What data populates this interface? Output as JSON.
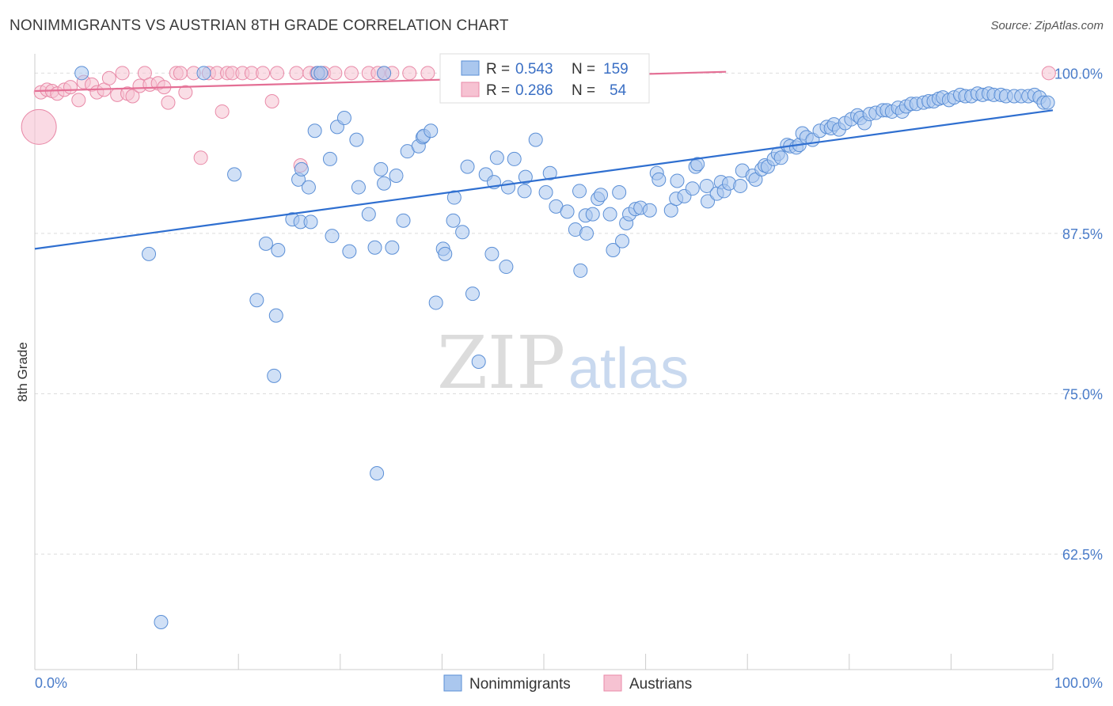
{
  "title": "NONIMMIGRANTS VS AUSTRIAN 8TH GRADE CORRELATION CHART",
  "source": "Source: ZipAtlas.com",
  "watermark": {
    "zip": "ZIP",
    "atlas": "atlas"
  },
  "legend_box": {
    "rows": [
      {
        "r_label": "R =",
        "r_value": "0.543",
        "n_label": "N =",
        "n_value": "159"
      },
      {
        "r_label": "R =",
        "r_value": "0.286",
        "n_label": "N =",
        "n_value": "54"
      }
    ]
  },
  "colors": {
    "blue_fill": "#aac7ee",
    "blue_stroke": "#5b8fd6",
    "blue_line": "#2f6fd0",
    "pink_fill": "#f6c2d2",
    "pink_stroke": "#e98aa8",
    "pink_line": "#e46f95",
    "grid": "#dddddd",
    "tick_text": "#4a7cc9"
  },
  "chart_data": {
    "type": "scatter",
    "title": "NONIMMIGRANTS VS AUSTRIAN 8TH GRADE CORRELATION CHART",
    "xlabel": "",
    "ylabel": "8th Grade",
    "xlim": [
      0,
      100
    ],
    "ylim": [
      53.5,
      101.5
    ],
    "x_tick_labels": [
      "0.0%",
      "100.0%"
    ],
    "y_ticks": [
      100.0,
      87.5,
      75.0,
      62.5
    ],
    "y_tick_labels": [
      "100.0%",
      "87.5%",
      "75.0%",
      "62.5%"
    ],
    "grid": true,
    "legend_position": "bottom-center",
    "series": [
      {
        "name": "Nonimmigrants",
        "R": 0.543,
        "N": 159,
        "trend": {
          "x": [
            0,
            100
          ],
          "y": [
            86.3,
            97.1
          ]
        },
        "points": [
          [
            4.6,
            100
          ],
          [
            16.6,
            100
          ],
          [
            27.8,
            100
          ],
          [
            28.1,
            100
          ],
          [
            34.3,
            100
          ],
          [
            11.2,
            85.9
          ],
          [
            19.6,
            92.1
          ],
          [
            21.8,
            82.3
          ],
          [
            22.7,
            86.7
          ],
          [
            23.5,
            76.4
          ],
          [
            23.7,
            81.1
          ],
          [
            23.9,
            86.2
          ],
          [
            25.3,
            88.6
          ],
          [
            25.9,
            91.7
          ],
          [
            26.1,
            88.4
          ],
          [
            26.2,
            92.5
          ],
          [
            26.9,
            91.1
          ],
          [
            27.1,
            88.4
          ],
          [
            27.5,
            95.5
          ],
          [
            29.0,
            93.3
          ],
          [
            29.2,
            87.3
          ],
          [
            29.7,
            95.8
          ],
          [
            30.4,
            96.5
          ],
          [
            30.9,
            86.1
          ],
          [
            31.6,
            94.8
          ],
          [
            31.8,
            91.1
          ],
          [
            32.8,
            89.0
          ],
          [
            33.4,
            86.4
          ],
          [
            33.6,
            68.8
          ],
          [
            34.0,
            92.5
          ],
          [
            34.3,
            91.4
          ],
          [
            35.1,
            86.4
          ],
          [
            35.5,
            92.0
          ],
          [
            36.2,
            88.5
          ],
          [
            36.6,
            93.9
          ],
          [
            37.7,
            94.3
          ],
          [
            38.1,
            95.0
          ],
          [
            38.2,
            95.1
          ],
          [
            38.9,
            95.5
          ],
          [
            39.4,
            82.1
          ],
          [
            40.1,
            86.3
          ],
          [
            40.3,
            85.9
          ],
          [
            41.1,
            88.5
          ],
          [
            41.2,
            90.3
          ],
          [
            42.0,
            87.6
          ],
          [
            42.5,
            92.7
          ],
          [
            43.0,
            82.8
          ],
          [
            43.6,
            77.5
          ],
          [
            44.3,
            92.1
          ],
          [
            44.9,
            85.9
          ],
          [
            45.1,
            91.5
          ],
          [
            45.4,
            93.4
          ],
          [
            46.3,
            84.9
          ],
          [
            46.5,
            91.1
          ],
          [
            47.1,
            93.3
          ],
          [
            48.1,
            90.8
          ],
          [
            48.2,
            91.9
          ],
          [
            49.2,
            94.8
          ],
          [
            50.2,
            90.7
          ],
          [
            50.6,
            92.2
          ],
          [
            51.2,
            89.6
          ],
          [
            52.3,
            89.2
          ],
          [
            53.1,
            87.8
          ],
          [
            53.5,
            90.8
          ],
          [
            53.6,
            84.6
          ],
          [
            54.1,
            88.9
          ],
          [
            54.2,
            87.5
          ],
          [
            54.8,
            89.0
          ],
          [
            55.3,
            90.2
          ],
          [
            55.6,
            90.5
          ],
          [
            56.5,
            89.0
          ],
          [
            56.8,
            86.2
          ],
          [
            57.4,
            90.7
          ],
          [
            57.7,
            86.9
          ],
          [
            58.1,
            88.3
          ],
          [
            58.4,
            89.0
          ],
          [
            59.0,
            89.4
          ],
          [
            59.5,
            89.5
          ],
          [
            60.4,
            89.3
          ],
          [
            61.1,
            92.2
          ],
          [
            61.3,
            91.7
          ],
          [
            62.5,
            89.3
          ],
          [
            63.0,
            90.2
          ],
          [
            63.1,
            91.6
          ],
          [
            63.8,
            90.4
          ],
          [
            64.6,
            91.0
          ],
          [
            64.9,
            92.7
          ],
          [
            65.1,
            92.9
          ],
          [
            66.0,
            91.2
          ],
          [
            66.1,
            90.0
          ],
          [
            67.0,
            90.6
          ],
          [
            67.4,
            91.5
          ],
          [
            67.7,
            90.8
          ],
          [
            68.2,
            91.4
          ],
          [
            69.3,
            91.2
          ],
          [
            69.5,
            92.4
          ],
          [
            70.5,
            92.0
          ],
          [
            70.8,
            91.7
          ],
          [
            71.4,
            92.5
          ],
          [
            71.7,
            92.8
          ],
          [
            72.0,
            92.7
          ],
          [
            72.6,
            93.3
          ],
          [
            73.0,
            93.7
          ],
          [
            73.3,
            93.4
          ],
          [
            73.9,
            94.4
          ],
          [
            74.2,
            94.3
          ],
          [
            74.8,
            94.2
          ],
          [
            75.1,
            94.4
          ],
          [
            75.4,
            95.3
          ],
          [
            75.8,
            95.0
          ],
          [
            76.4,
            94.8
          ],
          [
            77.1,
            95.5
          ],
          [
            77.8,
            95.8
          ],
          [
            78.2,
            95.7
          ],
          [
            78.5,
            96.0
          ],
          [
            79.0,
            95.6
          ],
          [
            79.6,
            96.1
          ],
          [
            80.2,
            96.4
          ],
          [
            80.8,
            96.7
          ],
          [
            81.1,
            96.5
          ],
          [
            81.5,
            96.1
          ],
          [
            82.0,
            96.8
          ],
          [
            82.6,
            96.9
          ],
          [
            83.3,
            97.1
          ],
          [
            83.7,
            97.1
          ],
          [
            84.2,
            97.0
          ],
          [
            84.8,
            97.3
          ],
          [
            85.2,
            97.0
          ],
          [
            85.6,
            97.4
          ],
          [
            86.1,
            97.6
          ],
          [
            86.6,
            97.6
          ],
          [
            87.3,
            97.7
          ],
          [
            87.8,
            97.8
          ],
          [
            88.3,
            97.8
          ],
          [
            88.8,
            98.0
          ],
          [
            89.2,
            98.1
          ],
          [
            89.8,
            97.9
          ],
          [
            90.3,
            98.1
          ],
          [
            90.9,
            98.3
          ],
          [
            91.4,
            98.2
          ],
          [
            92.0,
            98.2
          ],
          [
            92.6,
            98.4
          ],
          [
            93.1,
            98.3
          ],
          [
            93.7,
            98.4
          ],
          [
            94.2,
            98.3
          ],
          [
            94.9,
            98.3
          ],
          [
            95.4,
            98.2
          ],
          [
            96.2,
            98.2
          ],
          [
            96.9,
            98.2
          ],
          [
            97.6,
            98.2
          ],
          [
            98.2,
            98.3
          ],
          [
            98.7,
            98.1
          ],
          [
            99.1,
            97.7
          ],
          [
            99.5,
            97.7
          ],
          [
            12.4,
            57.2
          ]
        ]
      },
      {
        "name": "Austrians",
        "R": 0.286,
        "N": 54,
        "trend": {
          "x": [
            0,
            67.9
          ],
          "y": [
            98.6,
            100.1
          ]
        },
        "points": [
          [
            0.6,
            98.5
          ],
          [
            1.2,
            98.7
          ],
          [
            1.7,
            98.6
          ],
          [
            2.2,
            98.4
          ],
          [
            2.9,
            98.7
          ],
          [
            3.5,
            98.9
          ],
          [
            4.3,
            97.9
          ],
          [
            4.8,
            99.3
          ],
          [
            5.6,
            99.1
          ],
          [
            6.1,
            98.5
          ],
          [
            6.8,
            98.7
          ],
          [
            7.3,
            99.6
          ],
          [
            8.1,
            98.3
          ],
          [
            8.6,
            100
          ],
          [
            9.1,
            98.4
          ],
          [
            9.6,
            98.2
          ],
          [
            10.3,
            99.0
          ],
          [
            10.8,
            100
          ],
          [
            11.3,
            99.1
          ],
          [
            12.1,
            99.2
          ],
          [
            12.7,
            98.9
          ],
          [
            13.1,
            97.7
          ],
          [
            13.9,
            100
          ],
          [
            14.3,
            100
          ],
          [
            14.8,
            98.5
          ],
          [
            15.6,
            100
          ],
          [
            16.3,
            93.4
          ],
          [
            17.1,
            100
          ],
          [
            17.9,
            100
          ],
          [
            18.4,
            97.0
          ],
          [
            18.9,
            100
          ],
          [
            19.4,
            100
          ],
          [
            20.4,
            100
          ],
          [
            21.3,
            100
          ],
          [
            22.4,
            100
          ],
          [
            23.3,
            97.8
          ],
          [
            23.8,
            100
          ],
          [
            25.7,
            100
          ],
          [
            26.1,
            92.8
          ],
          [
            27.0,
            100
          ],
          [
            27.7,
            100
          ],
          [
            28.1,
            100
          ],
          [
            28.4,
            100
          ],
          [
            29.5,
            100
          ],
          [
            31.1,
            100
          ],
          [
            32.8,
            100
          ],
          [
            33.7,
            100
          ],
          [
            34.3,
            100
          ],
          [
            35.1,
            100
          ],
          [
            36.8,
            100
          ],
          [
            38.6,
            100
          ],
          [
            40.6,
            100
          ],
          [
            52.8,
            99.2
          ],
          [
            99.6,
            100
          ]
        ],
        "large_point": [
          0.4,
          95.8
        ]
      }
    ]
  }
}
